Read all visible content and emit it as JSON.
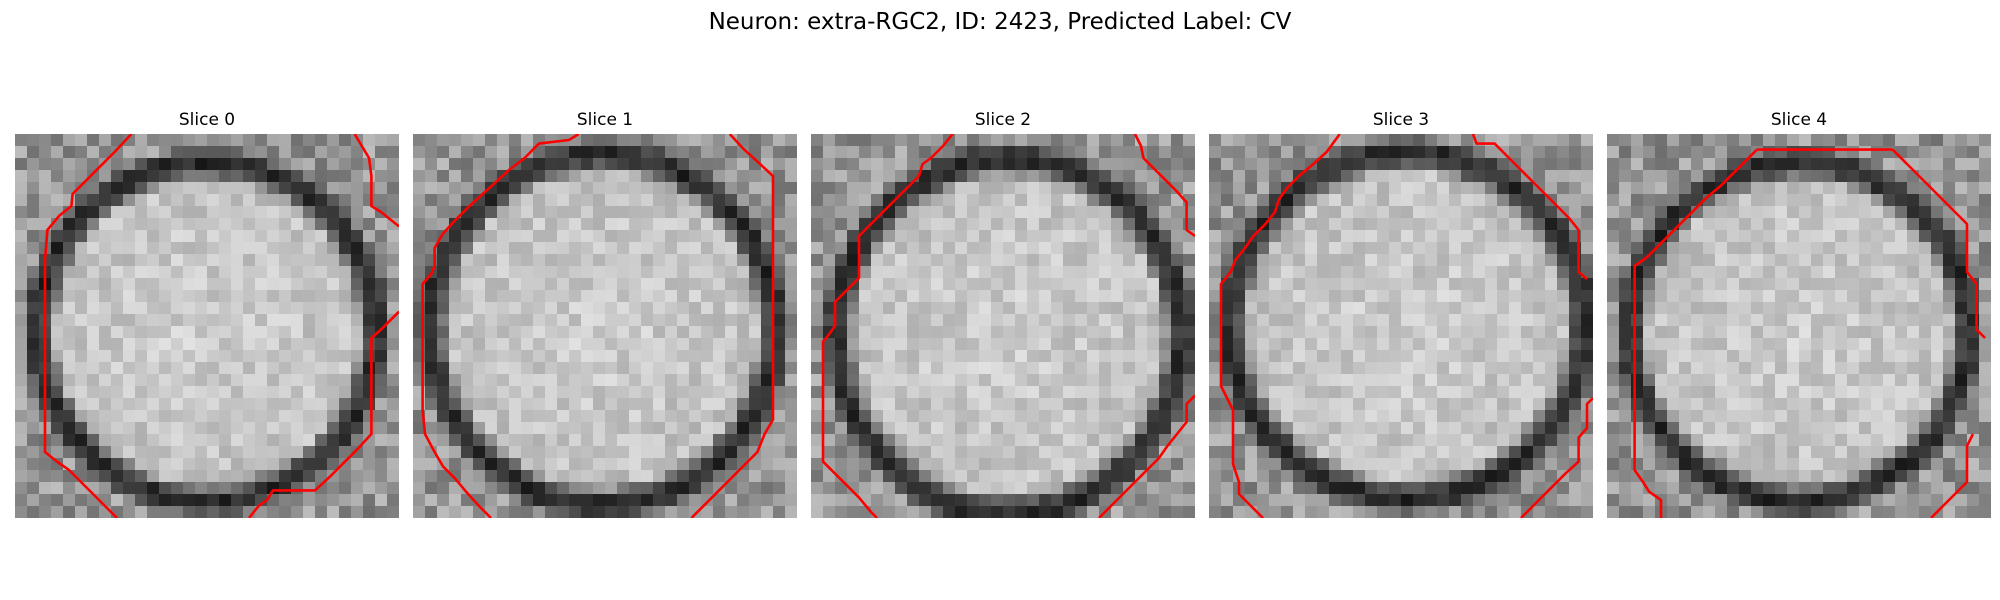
{
  "figure": {
    "title": "Neuron: extra-RGC2, ID: 2423, Predicted Label: CV",
    "grid_size": 32,
    "contour_color": "#ff0000"
  },
  "slices": [
    {
      "title": "Slice 0",
      "seed": 11,
      "center": [
        16.0,
        16.5
      ],
      "radius": [
        14.5,
        14.5
      ],
      "contours": [
        [
          [
            9.2,
            -0.5
          ],
          [
            7.8,
            1.0
          ],
          [
            6.0,
            2.8
          ],
          [
            4.3,
            4.5
          ],
          [
            4.2,
            5.5
          ],
          [
            3.2,
            6.3
          ],
          [
            2.2,
            7.5
          ],
          [
            2.0,
            10.0
          ],
          [
            2.0,
            13.5
          ],
          [
            2.0,
            17.0
          ],
          [
            2.0,
            20.5
          ],
          [
            2.0,
            24.5
          ],
          [
            2.0,
            26.0
          ],
          [
            3.0,
            26.8
          ],
          [
            4.0,
            27.5
          ],
          [
            5.0,
            28.5
          ],
          [
            6.0,
            29.5
          ],
          [
            7.0,
            30.5
          ],
          [
            8.0,
            31.5
          ]
        ],
        [
          [
            27.8,
            -0.5
          ],
          [
            29.0,
            1.5
          ],
          [
            29.2,
            3.0
          ],
          [
            29.2,
            5.5
          ],
          [
            30.0,
            6.0
          ],
          [
            31.5,
            7.2
          ]
        ],
        [
          [
            31.5,
            14.3
          ],
          [
            30.0,
            15.8
          ],
          [
            29.2,
            16.5
          ],
          [
            29.2,
            19.5
          ],
          [
            29.2,
            22.0
          ],
          [
            29.2,
            24.5
          ],
          [
            28.0,
            25.8
          ],
          [
            27.0,
            26.8
          ],
          [
            25.8,
            28.0
          ],
          [
            24.5,
            29.2
          ],
          [
            22.5,
            29.2
          ],
          [
            21.0,
            29.2
          ],
          [
            20.5,
            30.0
          ],
          [
            19.8,
            30.5
          ],
          [
            19.0,
            31.5
          ]
        ]
      ]
    },
    {
      "title": "Slice 1",
      "seed": 23,
      "center": [
        15.8,
        16.3
      ],
      "radius": [
        14.8,
        15.0
      ],
      "contours": [
        [
          [
            13.3,
            -0.5
          ],
          [
            12.5,
            0.0
          ],
          [
            10.0,
            0.3
          ],
          [
            8.8,
            1.5
          ],
          [
            7.5,
            2.5
          ],
          [
            6.3,
            3.6
          ],
          [
            5.2,
            4.6
          ],
          [
            4.0,
            5.7
          ],
          [
            3.0,
            6.7
          ],
          [
            2.0,
            7.8
          ],
          [
            1.3,
            9.0
          ],
          [
            1.3,
            10.5
          ],
          [
            1.0,
            11.2
          ],
          [
            0.3,
            12.0
          ],
          [
            0.3,
            14.0
          ],
          [
            0.3,
            18.0
          ],
          [
            0.3,
            22.5
          ],
          [
            0.5,
            24.5
          ],
          [
            1.3,
            26.0
          ],
          [
            2.0,
            27.2
          ],
          [
            3.0,
            28.2
          ],
          [
            4.0,
            29.4
          ],
          [
            5.0,
            30.5
          ],
          [
            6.0,
            31.5
          ]
        ],
        [
          [
            25.9,
            -0.5
          ],
          [
            27.0,
            0.7
          ],
          [
            28.2,
            1.8
          ],
          [
            29.5,
            3.0
          ],
          [
            29.5,
            5.5
          ],
          [
            29.5,
            9.5
          ],
          [
            29.5,
            14.0
          ],
          [
            29.5,
            19.0
          ],
          [
            29.5,
            23.3
          ],
          [
            28.8,
            24.5
          ],
          [
            28.2,
            26.0
          ],
          [
            27.2,
            27.0
          ],
          [
            26.2,
            28.0
          ],
          [
            25.0,
            29.2
          ],
          [
            24.0,
            30.2
          ],
          [
            22.7,
            31.5
          ]
        ]
      ]
    },
    {
      "title": "Slice 2",
      "seed": 37,
      "center": [
        16.5,
        16.8
      ],
      "radius": [
        14.8,
        15.2
      ],
      "contours": [
        [
          [
            11.3,
            -0.5
          ],
          [
            10.5,
            0.5
          ],
          [
            9.5,
            1.5
          ],
          [
            8.8,
            2.0
          ],
          [
            8.5,
            3.0
          ],
          [
            7.5,
            4.0
          ],
          [
            6.5,
            5.0
          ],
          [
            5.0,
            6.5
          ],
          [
            3.5,
            8.0
          ],
          [
            3.5,
            9.5
          ],
          [
            3.5,
            11.5
          ],
          [
            2.5,
            12.5
          ],
          [
            1.5,
            13.5
          ],
          [
            1.5,
            15.5
          ],
          [
            1.0,
            16.2
          ],
          [
            0.5,
            16.8
          ],
          [
            0.5,
            19.0
          ],
          [
            0.5,
            22.0
          ],
          [
            0.5,
            25.0
          ],
          [
            0.5,
            26.8
          ],
          [
            1.5,
            27.8
          ],
          [
            2.5,
            28.8
          ],
          [
            3.5,
            29.8
          ],
          [
            4.5,
            31.0
          ],
          [
            5.0,
            31.5
          ]
        ],
        [
          [
            26.5,
            -0.5
          ],
          [
            27.0,
            0.5
          ],
          [
            27.2,
            1.5
          ],
          [
            28.0,
            2.3
          ],
          [
            29.0,
            3.3
          ],
          [
            30.0,
            4.3
          ],
          [
            30.8,
            5.2
          ],
          [
            30.8,
            6.5
          ],
          [
            30.8,
            7.5
          ],
          [
            31.5,
            8.0
          ]
        ],
        [
          [
            31.5,
            21.3
          ],
          [
            30.8,
            22.0
          ],
          [
            30.8,
            23.5
          ],
          [
            30.0,
            24.5
          ],
          [
            29.2,
            25.5
          ],
          [
            28.5,
            26.5
          ],
          [
            27.5,
            27.5
          ],
          [
            26.5,
            28.5
          ],
          [
            25.5,
            29.5
          ],
          [
            24.5,
            30.5
          ],
          [
            23.5,
            31.5
          ]
        ]
      ]
    },
    {
      "title": "Slice 3",
      "seed": 51,
      "center": [
        16.5,
        16.0
      ],
      "radius": [
        15.2,
        14.8
      ],
      "contours": [
        [
          [
            10.4,
            -0.5
          ],
          [
            9.3,
            1.0
          ],
          [
            8.2,
            2.0
          ],
          [
            7.0,
            3.0
          ],
          [
            6.0,
            4.0
          ],
          [
            5.3,
            5.0
          ],
          [
            5.0,
            6.0
          ],
          [
            4.2,
            7.0
          ],
          [
            3.2,
            8.0
          ],
          [
            2.5,
            9.0
          ],
          [
            1.7,
            10.0
          ],
          [
            1.3,
            11.0
          ],
          [
            0.5,
            12.0
          ],
          [
            0.5,
            14.0
          ],
          [
            0.5,
            17.0
          ],
          [
            0.5,
            20.5
          ],
          [
            1.0,
            21.5
          ],
          [
            1.5,
            22.5
          ],
          [
            1.5,
            25.0
          ],
          [
            1.5,
            27.0
          ],
          [
            2.0,
            28.5
          ],
          [
            2.0,
            29.5
          ],
          [
            3.0,
            30.5
          ],
          [
            4.0,
            31.5
          ]
        ],
        [
          [
            21.5,
            -0.5
          ],
          [
            21.8,
            0.3
          ],
          [
            23.3,
            0.3
          ],
          [
            24.5,
            1.5
          ],
          [
            25.5,
            2.5
          ],
          [
            26.5,
            3.5
          ],
          [
            27.5,
            4.5
          ],
          [
            28.5,
            5.5
          ],
          [
            29.5,
            6.5
          ],
          [
            30.3,
            7.5
          ],
          [
            30.3,
            9.5
          ],
          [
            30.3,
            11.0
          ],
          [
            31.0,
            11.6
          ]
        ],
        [
          [
            31.5,
            21.5
          ],
          [
            31.0,
            22.0
          ],
          [
            31.0,
            24.0
          ],
          [
            30.3,
            24.8
          ],
          [
            30.3,
            26.8
          ],
          [
            29.2,
            27.8
          ],
          [
            28.2,
            28.8
          ],
          [
            27.2,
            29.8
          ],
          [
            26.0,
            31.0
          ],
          [
            25.5,
            31.5
          ]
        ]
      ]
    },
    {
      "title": "Slice 4",
      "seed": 67,
      "center": [
        16.0,
        16.5
      ],
      "radius": [
        14.5,
        14.5
      ],
      "contours": [
        [
          [
            12.0,
            0.8
          ],
          [
            15.0,
            0.8
          ],
          [
            18.5,
            0.8
          ],
          [
            21.5,
            0.8
          ],
          [
            23.3,
            0.8
          ]
        ],
        [
          [
            12.0,
            0.8
          ],
          [
            11.0,
            1.8
          ],
          [
            10.0,
            2.8
          ],
          [
            9.0,
            3.8
          ],
          [
            7.8,
            4.8
          ],
          [
            6.8,
            5.8
          ],
          [
            5.8,
            6.8
          ],
          [
            4.8,
            7.8
          ],
          [
            3.8,
            8.8
          ],
          [
            2.8,
            9.8
          ],
          [
            1.8,
            10.5
          ],
          [
            1.8,
            13.0
          ],
          [
            1.8,
            17.0
          ],
          [
            1.8,
            21.0
          ],
          [
            1.8,
            24.5
          ],
          [
            1.8,
            27.5
          ],
          [
            2.5,
            28.5
          ],
          [
            3.0,
            29.3
          ],
          [
            4.0,
            30.0
          ],
          [
            4.0,
            31.0
          ],
          [
            4.0,
            31.5
          ]
        ],
        [
          [
            23.3,
            0.8
          ],
          [
            24.5,
            2.0
          ],
          [
            25.5,
            3.0
          ],
          [
            26.5,
            4.0
          ],
          [
            27.5,
            5.0
          ],
          [
            28.5,
            6.0
          ],
          [
            29.5,
            7.0
          ],
          [
            29.5,
            9.0
          ],
          [
            29.5,
            11.0
          ],
          [
            30.3,
            12.0
          ],
          [
            30.3,
            14.0
          ],
          [
            30.3,
            15.8
          ],
          [
            31.0,
            16.5
          ]
        ],
        [
          [
            30.0,
            24.5
          ],
          [
            29.5,
            25.5
          ],
          [
            29.5,
            27.0
          ],
          [
            29.5,
            28.5
          ],
          [
            28.5,
            29.5
          ],
          [
            27.5,
            30.5
          ],
          [
            26.5,
            31.5
          ]
        ]
      ]
    }
  ]
}
